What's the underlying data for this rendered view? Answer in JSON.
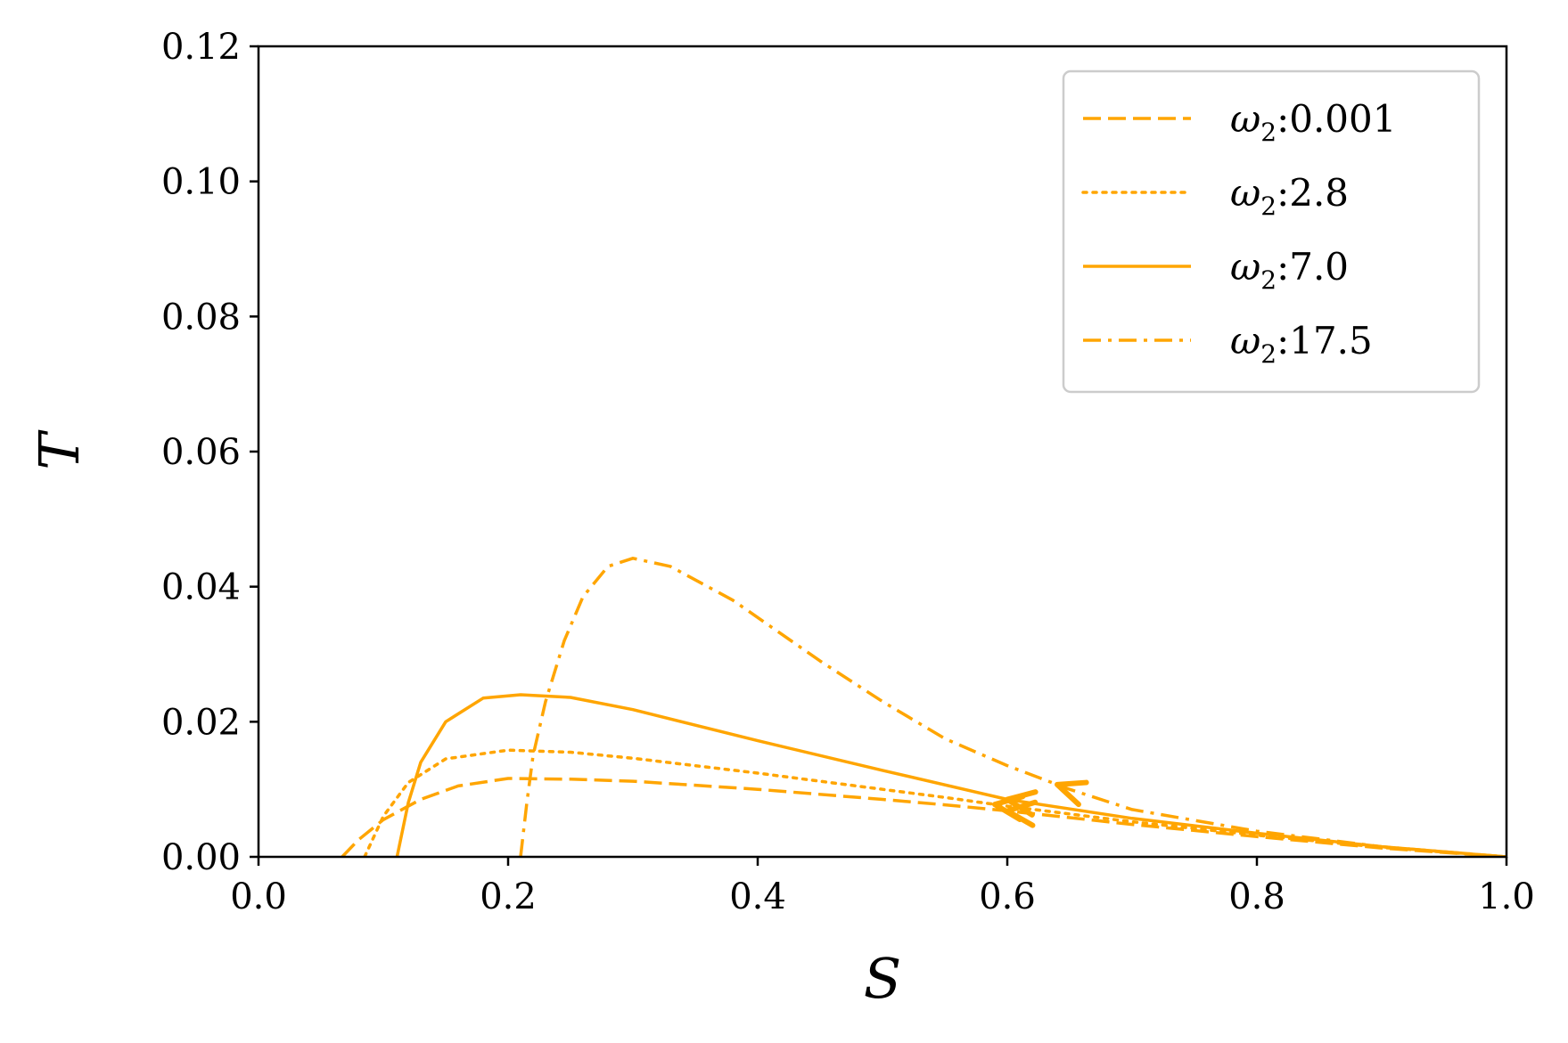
{
  "chart_data": {
    "type": "line",
    "xlabel": "S",
    "ylabel": "T",
    "xlim": [
      0.0,
      1.0
    ],
    "ylim": [
      0.0,
      0.12
    ],
    "xticks": [
      "0.0",
      "0.2",
      "0.4",
      "0.6",
      "0.8",
      "1.0"
    ],
    "yticks": [
      "0.00",
      "0.02",
      "0.04",
      "0.06",
      "0.08",
      "0.10",
      "0.12"
    ],
    "grid": false,
    "legend_position": "top-right",
    "color": "#ffa500",
    "series": [
      {
        "name": "ω2:0.001",
        "legend_symbol": "ω",
        "legend_sub": "2",
        "legend_value": ":0.001",
        "style": "dashed",
        "points": [
          [
            0.067,
            0.0
          ],
          [
            0.08,
            0.0025
          ],
          [
            0.1,
            0.0055
          ],
          [
            0.13,
            0.0085
          ],
          [
            0.16,
            0.0105
          ],
          [
            0.2,
            0.0116
          ],
          [
            0.25,
            0.0115
          ],
          [
            0.3,
            0.0112
          ],
          [
            0.4,
            0.01
          ],
          [
            0.5,
            0.0085
          ],
          [
            0.55,
            0.0077
          ],
          [
            0.6,
            0.0068
          ],
          [
            0.7,
            0.0048
          ],
          [
            0.8,
            0.003
          ],
          [
            0.9,
            0.0013
          ],
          [
            1.0,
            0.0
          ]
        ],
        "arrow_at": 0.6
      },
      {
        "name": "ω2:2.8",
        "legend_symbol": "ω",
        "legend_sub": "2",
        "legend_value": ":2.8",
        "style": "dotted",
        "points": [
          [
            0.085,
            0.0
          ],
          [
            0.1,
            0.006
          ],
          [
            0.12,
            0.011
          ],
          [
            0.15,
            0.0145
          ],
          [
            0.2,
            0.0158
          ],
          [
            0.25,
            0.0155
          ],
          [
            0.3,
            0.0146
          ],
          [
            0.4,
            0.0124
          ],
          [
            0.5,
            0.01
          ],
          [
            0.55,
            0.0088
          ],
          [
            0.6,
            0.0075
          ],
          [
            0.7,
            0.0052
          ],
          [
            0.8,
            0.0032
          ],
          [
            0.9,
            0.0014
          ],
          [
            1.0,
            0.0
          ]
        ],
        "arrow_at": 0.59
      },
      {
        "name": "ω2:7.0",
        "legend_symbol": "ω",
        "legend_sub": "2",
        "legend_value": ":7.0",
        "style": "solid",
        "points": [
          [
            0.111,
            0.0
          ],
          [
            0.12,
            0.008
          ],
          [
            0.13,
            0.014
          ],
          [
            0.15,
            0.02
          ],
          [
            0.18,
            0.0235
          ],
          [
            0.21,
            0.024
          ],
          [
            0.25,
            0.0236
          ],
          [
            0.3,
            0.0218
          ],
          [
            0.4,
            0.0172
          ],
          [
            0.5,
            0.0128
          ],
          [
            0.6,
            0.0085
          ],
          [
            0.7,
            0.0057
          ],
          [
            0.8,
            0.0035
          ],
          [
            0.9,
            0.0015
          ],
          [
            1.0,
            0.0
          ]
        ],
        "arrow_at": 0.6
      },
      {
        "name": "ω2:17.5",
        "legend_symbol": "ω",
        "legend_sub": "2",
        "legend_value": ":17.5",
        "style": "dashdot",
        "points": [
          [
            0.21,
            0.0
          ],
          [
            0.215,
            0.008
          ],
          [
            0.22,
            0.015
          ],
          [
            0.23,
            0.023
          ],
          [
            0.245,
            0.032
          ],
          [
            0.26,
            0.0385
          ],
          [
            0.28,
            0.043
          ],
          [
            0.3,
            0.0442
          ],
          [
            0.33,
            0.043
          ],
          [
            0.38,
            0.038
          ],
          [
            0.45,
            0.029
          ],
          [
            0.5,
            0.023
          ],
          [
            0.55,
            0.0175
          ],
          [
            0.6,
            0.0135
          ],
          [
            0.65,
            0.01
          ],
          [
            0.7,
            0.007
          ],
          [
            0.8,
            0.0038
          ],
          [
            0.9,
            0.0015
          ],
          [
            1.0,
            0.0
          ]
        ],
        "arrow_at": 0.64
      }
    ]
  }
}
